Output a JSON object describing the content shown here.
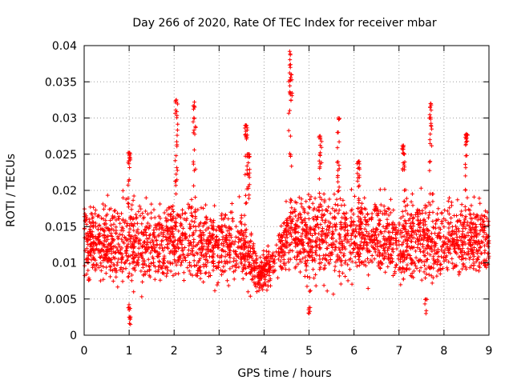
{
  "chart_data": {
    "type": "scatter",
    "title": "Day 266 of 2020, Rate Of TEC Index for receiver mbar",
    "xlabel": "GPS time / hours",
    "ylabel": "ROTI / TECUs",
    "xlim": [
      0,
      9
    ],
    "ylim": [
      0,
      0.04
    ],
    "xticks": [
      "0",
      "1",
      "2",
      "3",
      "4",
      "5",
      "6",
      "7",
      "8",
      "9"
    ],
    "yticks": [
      "0",
      "0.005",
      "0.01",
      "0.015",
      "0.02",
      "0.025",
      "0.03",
      "0.035",
      "0.04"
    ],
    "grid": true,
    "marker": "plus",
    "color": "#ff0000",
    "series": [
      {
        "name": "ROTI",
        "band_profile": {
          "x": [
            0.0,
            0.5,
            1.0,
            1.5,
            2.0,
            2.5,
            3.0,
            3.5,
            3.9,
            4.3,
            4.6,
            5.0,
            5.5,
            6.0,
            6.5,
            7.0,
            7.5,
            8.0,
            8.5,
            9.0
          ],
          "low": [
            0.006,
            0.005,
            0.004,
            0.005,
            0.006,
            0.005,
            0.006,
            0.005,
            0.004,
            0.007,
            0.007,
            0.004,
            0.005,
            0.006,
            0.006,
            0.005,
            0.005,
            0.006,
            0.006,
            0.006
          ],
          "high": [
            0.02,
            0.02,
            0.022,
            0.02,
            0.021,
            0.02,
            0.019,
            0.02,
            0.012,
            0.015,
            0.022,
            0.022,
            0.022,
            0.022,
            0.021,
            0.021,
            0.022,
            0.02,
            0.021,
            0.02
          ]
        },
        "peaks": [
          {
            "x": 1.0,
            "y": 0.0252
          },
          {
            "x": 2.05,
            "y": 0.0325
          },
          {
            "x": 2.45,
            "y": 0.0322
          },
          {
            "x": 3.6,
            "y": 0.029
          },
          {
            "x": 3.65,
            "y": 0.025
          },
          {
            "x": 4.57,
            "y": 0.0392
          },
          {
            "x": 4.6,
            "y": 0.036
          },
          {
            "x": 5.25,
            "y": 0.0275
          },
          {
            "x": 5.65,
            "y": 0.03
          },
          {
            "x": 6.1,
            "y": 0.024
          },
          {
            "x": 7.1,
            "y": 0.0262
          },
          {
            "x": 7.7,
            "y": 0.032
          },
          {
            "x": 8.5,
            "y": 0.0278
          }
        ],
        "lows": [
          {
            "x": 1.03,
            "y": 0.0015
          },
          {
            "x": 1.0,
            "y": 0.0025
          },
          {
            "x": 5.0,
            "y": 0.003
          },
          {
            "x": 7.6,
            "y": 0.003
          }
        ],
        "point_count": 3000
      }
    ]
  }
}
